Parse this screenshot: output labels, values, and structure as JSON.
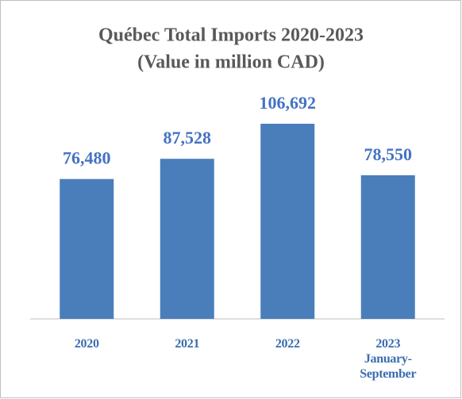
{
  "chart_data": {
    "type": "bar",
    "title": "Québec Total Imports 2020-2023",
    "subtitle": "(Value in million CAD)",
    "categories": [
      "2020",
      "2021",
      "2022",
      "2023 January-September"
    ],
    "values": [
      76480,
      87528,
      106692,
      78550
    ],
    "value_labels": [
      "76,480",
      "87,528",
      "106,692",
      "78,550"
    ],
    "color": "#4a7ebb"
  }
}
